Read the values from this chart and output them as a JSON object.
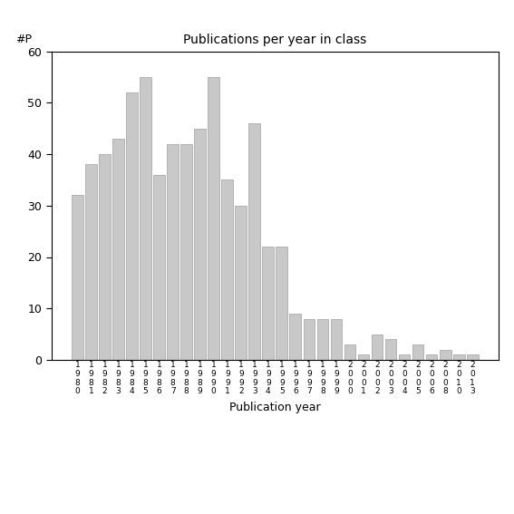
{
  "title": "Publications per year in class",
  "xlabel": "Publication year",
  "ylabel_text": "#P",
  "ylim": [
    0,
    60
  ],
  "yticks": [
    0,
    10,
    20,
    30,
    40,
    50,
    60
  ],
  "bar_color": "#c8c8c8",
  "bar_edgecolor": "#a0a0a0",
  "categories": [
    "1980",
    "1981",
    "1982",
    "1983",
    "1984",
    "1985",
    "1986",
    "1987",
    "1988",
    "1989",
    "1990",
    "1991",
    "1992",
    "1993",
    "1994",
    "1995",
    "1996",
    "1997",
    "1998",
    "1999",
    "2000",
    "2001",
    "2002",
    "2003",
    "2004",
    "2005",
    "2006",
    "2008",
    "2010",
    "2013"
  ],
  "values": [
    32,
    38,
    40,
    43,
    52,
    55,
    36,
    42,
    42,
    45,
    55,
    35,
    30,
    46,
    22,
    22,
    9,
    8,
    8,
    8,
    3,
    1,
    5,
    4,
    1,
    3,
    1,
    2,
    1,
    1
  ],
  "background_color": "#ffffff",
  "plot_background": "#ffffff"
}
